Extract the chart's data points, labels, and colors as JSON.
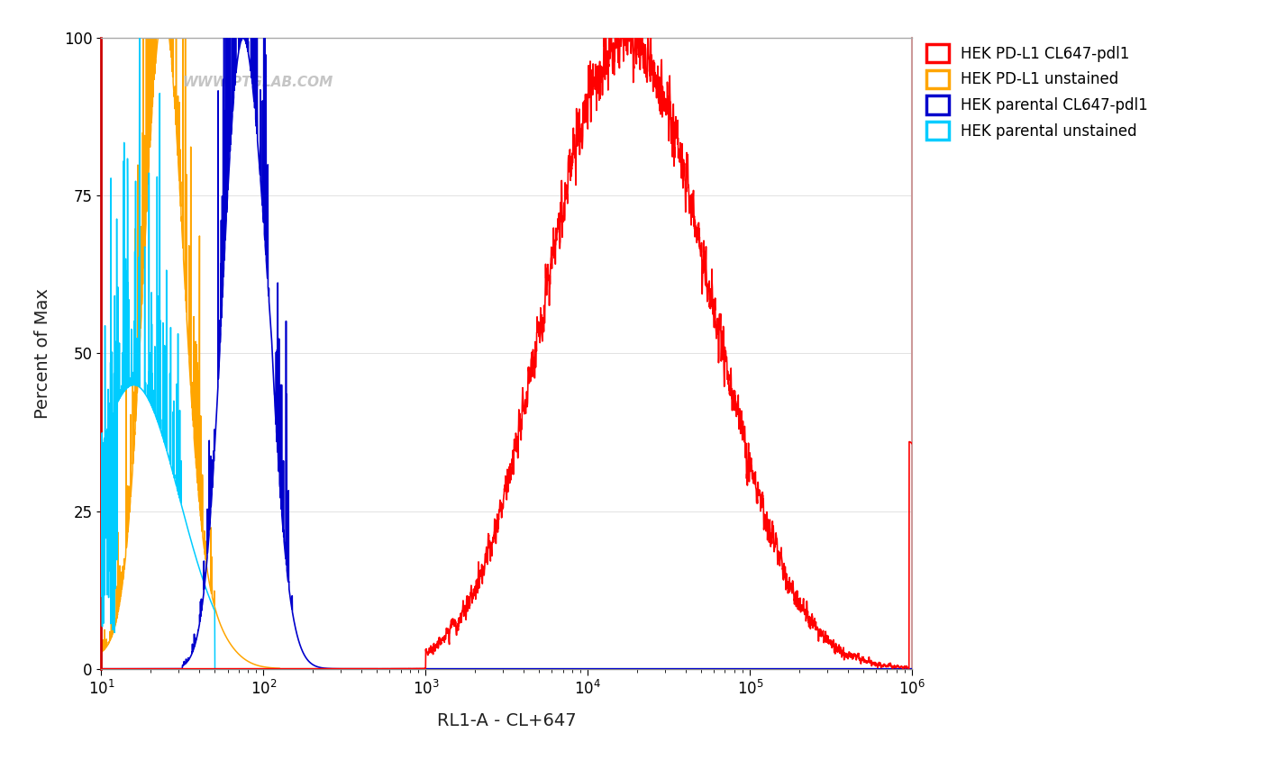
{
  "title": "",
  "xlabel": "RL1-A - CL+647",
  "ylabel": "Percent of Max",
  "xlim": [
    10,
    1000000
  ],
  "ylim": [
    0,
    100
  ],
  "yticks": [
    0,
    25,
    50,
    75,
    100
  ],
  "watermark": "WWW.PTGLAB.COM",
  "legend_entries": [
    {
      "label": "HEK PD-L1 CL647-pdl1",
      "color": "#FF0000"
    },
    {
      "label": "HEK PD-L1 unstained",
      "color": "#FFA500"
    },
    {
      "label": "HEK parental CL647-pdl1",
      "color": "#0000CC"
    },
    {
      "label": "HEK parental unstained",
      "color": "#00CCFF"
    }
  ],
  "background_color": "#FFFFFF",
  "plot_bg_color": "#FFFFFF",
  "left_border_color": "#CC0000",
  "right_border_color": "#CC9999",
  "top_border_color": "#AAAAAA",
  "bottom_border_color": "#888888"
}
